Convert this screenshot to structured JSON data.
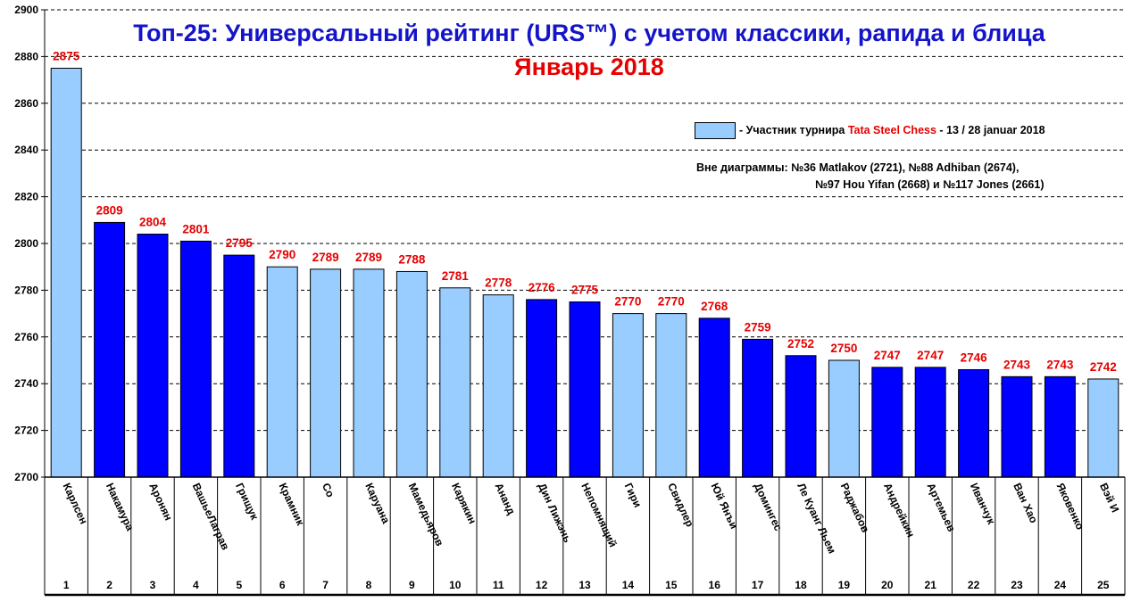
{
  "chart_data": {
    "type": "bar",
    "title": "Топ-25: Универсальный рейтинг (URS™) с учетом классики, рапида и блица",
    "subtitle": "Январь 2018",
    "ylim": [
      2700,
      2900
    ],
    "yticks": [
      2700,
      2720,
      2740,
      2760,
      2780,
      2800,
      2820,
      2840,
      2860,
      2880,
      2900
    ],
    "grid": true,
    "categories": [
      "Карлсен",
      "Накамура",
      "Аронян",
      "ВашьеЛаграв",
      "Грищук",
      "Крамник",
      "Со",
      "Каруана",
      "Мамедьяров",
      "Карякин",
      "Ананд",
      "Дин Лижэнь",
      "Непомнящий",
      "Гири",
      "Свидлер",
      "Юй Янъи",
      "Домингес",
      "Ле Куанг Льем",
      "Раджабов",
      "Андрейкин",
      "Артемьев",
      "Иванчук",
      "Ван Хао",
      "Яковенко",
      "Вэй И"
    ],
    "ranks": [
      "1",
      "2",
      "3",
      "4",
      "5",
      "6",
      "7",
      "8",
      "9",
      "10",
      "11",
      "12",
      "13",
      "14",
      "15",
      "16",
      "17",
      "18",
      "19",
      "20",
      "21",
      "22",
      "23",
      "24",
      "25"
    ],
    "values": [
      2875,
      2809,
      2804,
      2801,
      2795,
      2790,
      2789,
      2789,
      2788,
      2781,
      2778,
      2776,
      2775,
      2770,
      2770,
      2768,
      2759,
      2752,
      2750,
      2747,
      2747,
      2746,
      2743,
      2743,
      2742
    ],
    "tata_steel_participant": [
      true,
      false,
      false,
      false,
      false,
      true,
      true,
      true,
      true,
      true,
      true,
      false,
      false,
      true,
      true,
      false,
      false,
      false,
      true,
      false,
      false,
      false,
      false,
      false,
      true
    ],
    "colors": {
      "participant": "#99ccff",
      "other": "#0000ff",
      "value_label": "#e60000",
      "title": "#1414c8",
      "subtitle": "#e60000"
    },
    "legend": {
      "position": "top-right",
      "prefix": "- Участник турнира ",
      "highlight": "Tata Steel Chess",
      "suffix": " - 13 / 28 januar 2018"
    },
    "annotation": {
      "line1": "Вне диаграммы: №36 Matlakov (2721), №88 Adhiban (2674),",
      "line2": "№97 Hou Yifan (2668)  и №117 Jones (2661)"
    }
  }
}
